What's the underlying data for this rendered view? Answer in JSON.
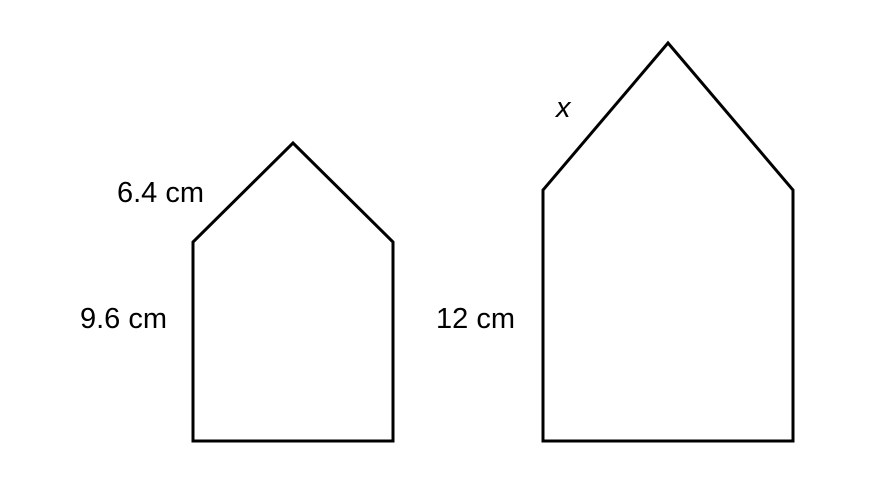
{
  "small_pentagon": {
    "slant_side_label": "6.4 cm",
    "height_label": "9.6 cm"
  },
  "large_pentagon": {
    "slant_side_label": "x",
    "height_label": "12 cm"
  },
  "colors": {
    "stroke": "#000000",
    "background": "#ffffff"
  }
}
